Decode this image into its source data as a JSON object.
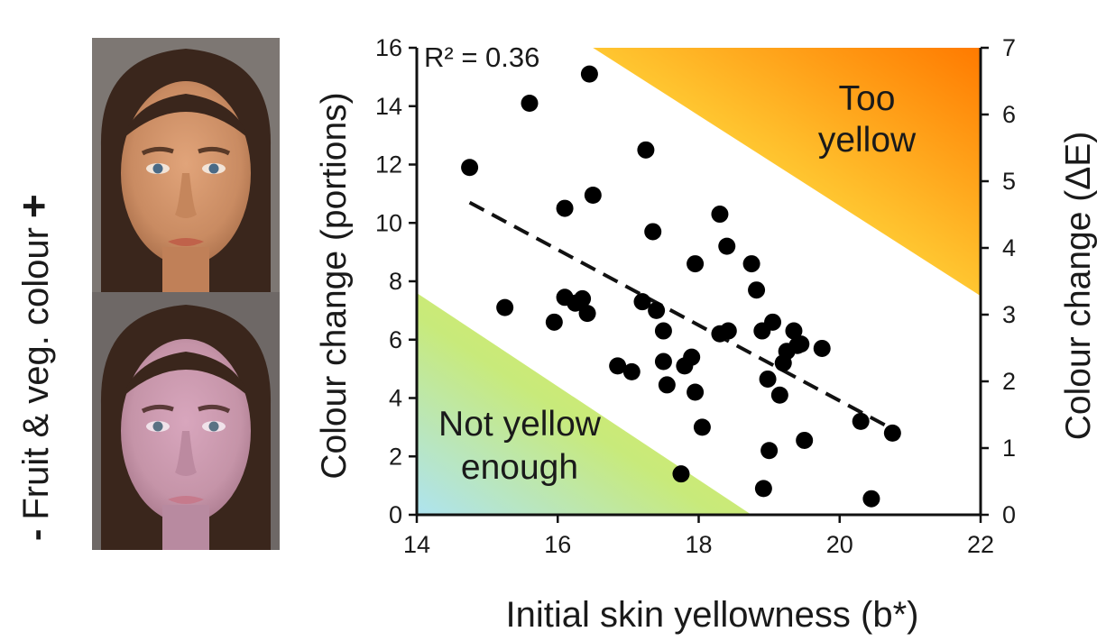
{
  "side_label": {
    "minus": "-",
    "text": "Fruit & veg. colour",
    "plus": "+"
  },
  "faces": [
    {
      "name": "more-fruit-veg-face",
      "tone": "#c98b62"
    },
    {
      "name": "less-fruit-veg-face",
      "tone": "#c594a8"
    }
  ],
  "chart_data": {
    "type": "scatter",
    "title": "",
    "xlabel": "Initial skin yellowness (b*)",
    "ylabel": "Colour change (portions)",
    "y2label": "Colour change (ΔE)",
    "xlim": [
      14,
      22
    ],
    "ylim": [
      0,
      16
    ],
    "y2lim": [
      0,
      7
    ],
    "xticks": [
      14,
      16,
      18,
      20,
      22
    ],
    "yticks": [
      0,
      2,
      4,
      6,
      8,
      10,
      12,
      14,
      16
    ],
    "y2ticks": [
      0,
      1,
      2,
      3,
      4,
      5,
      6,
      7
    ],
    "annotation": "R² = 0.36",
    "regions": [
      {
        "label_lines": [
          "Too",
          "yellow"
        ],
        "colors": [
          "#ff7a00",
          "#ffd23a",
          "#ffef6a"
        ]
      },
      {
        "label_lines": [
          "Not yellow",
          "enough"
        ],
        "colors": [
          "#aee3f0",
          "#c8ea7a",
          "#e3f05a"
        ]
      }
    ],
    "trend_line": {
      "style": "dashed",
      "x": [
        14.75,
        20.7
      ],
      "y": [
        10.7,
        3.0
      ]
    },
    "points": [
      [
        14.75,
        11.9
      ],
      [
        15.25,
        7.1
      ],
      [
        15.6,
        14.1
      ],
      [
        15.95,
        6.6
      ],
      [
        16.1,
        10.5
      ],
      [
        16.1,
        7.45
      ],
      [
        16.25,
        7.25
      ],
      [
        16.35,
        7.4
      ],
      [
        16.42,
        6.9
      ],
      [
        16.45,
        15.1
      ],
      [
        16.5,
        10.95
      ],
      [
        16.85,
        5.1
      ],
      [
        17.05,
        4.9
      ],
      [
        17.2,
        7.3
      ],
      [
        17.25,
        12.5
      ],
      [
        17.35,
        9.7
      ],
      [
        17.4,
        7.0
      ],
      [
        17.5,
        6.3
      ],
      [
        17.5,
        5.25
      ],
      [
        17.55,
        4.45
      ],
      [
        17.75,
        1.4
      ],
      [
        17.8,
        5.1
      ],
      [
        17.9,
        5.4
      ],
      [
        17.95,
        4.2
      ],
      [
        17.95,
        8.6
      ],
      [
        18.05,
        3.0
      ],
      [
        18.3,
        10.3
      ],
      [
        18.3,
        6.2
      ],
      [
        18.4,
        9.2
      ],
      [
        18.42,
        6.3
      ],
      [
        18.75,
        8.6
      ],
      [
        18.82,
        7.7
      ],
      [
        18.9,
        6.3
      ],
      [
        18.92,
        0.9
      ],
      [
        18.98,
        4.65
      ],
      [
        19.0,
        2.2
      ],
      [
        19.05,
        6.6
      ],
      [
        19.15,
        4.1
      ],
      [
        19.2,
        5.2
      ],
      [
        19.25,
        5.6
      ],
      [
        19.35,
        6.3
      ],
      [
        19.4,
        5.8
      ],
      [
        19.45,
        5.85
      ],
      [
        19.5,
        2.55
      ],
      [
        19.75,
        5.7
      ],
      [
        20.3,
        3.2
      ],
      [
        20.45,
        0.55
      ],
      [
        20.75,
        2.8
      ]
    ]
  }
}
